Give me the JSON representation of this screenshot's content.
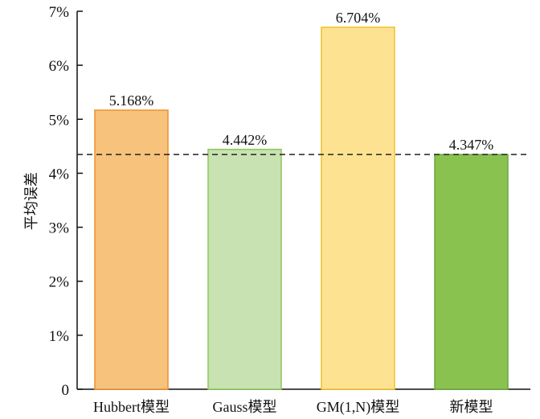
{
  "chart_data": {
    "type": "bar",
    "ylabel": "平均误差",
    "categories": [
      "Hubbert模型",
      "Gauss模型",
      "GM(1,N)模型",
      "新模型"
    ],
    "values": [
      5.168,
      4.442,
      6.704,
      4.347
    ],
    "value_labels": [
      "5.168%",
      "4.442%",
      "6.704%",
      "4.347%"
    ],
    "ylim": [
      0,
      7
    ],
    "yticks": [
      0,
      1,
      2,
      3,
      4,
      5,
      6,
      7
    ],
    "ytick_labels": [
      "0",
      "1%",
      "2%",
      "3%",
      "4%",
      "5%",
      "6%",
      "7%"
    ],
    "reference_line": {
      "value": 4.347,
      "style": "dashed"
    },
    "colors": {
      "fills": [
        "#f7c27c",
        "#c9e2b2",
        "#fde391",
        "#8ac250"
      ],
      "strokes": [
        "#ee8f2c",
        "#8cc65c",
        "#f2c12c",
        "#67a83a"
      ]
    },
    "grid": false,
    "legend": "none"
  }
}
